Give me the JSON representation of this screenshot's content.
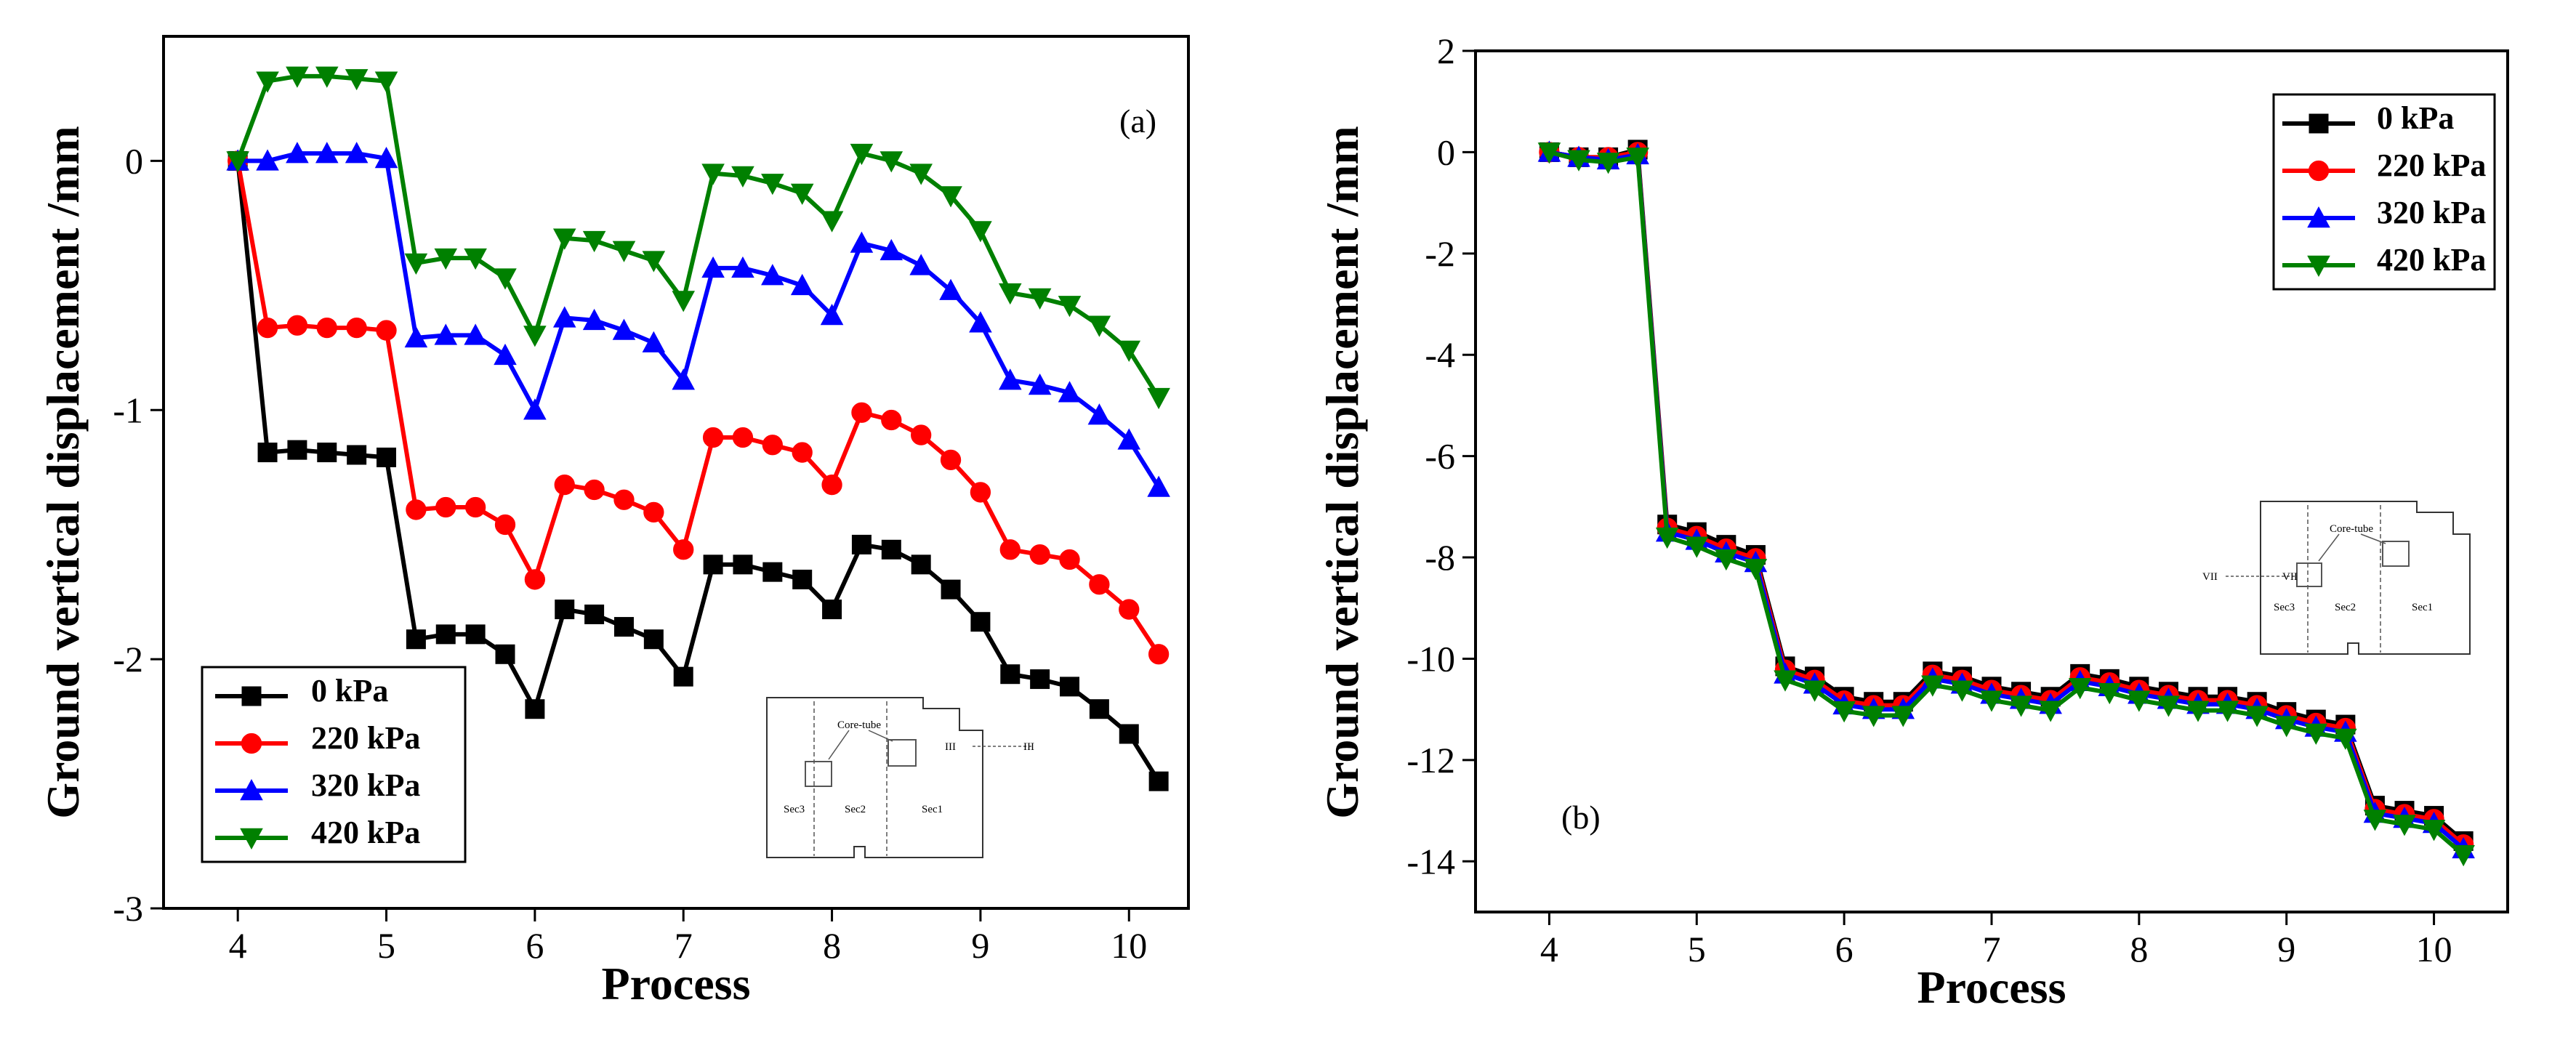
{
  "chart_data": [
    {
      "type": "line",
      "panel_label": "(a)",
      "xlabel": "Process",
      "ylabel": "Ground vertical displacement /mm",
      "xlim": [
        3.5,
        10.4
      ],
      "ylim": [
        -3,
        0.5
      ],
      "xticks": [
        4,
        5,
        6,
        7,
        8,
        9,
        10
      ],
      "yticks": [
        0,
        -1,
        -2,
        -3
      ],
      "ytick_labels": [
        "0",
        "-1",
        "-2",
        "-3"
      ],
      "legend_position": "bottom-left",
      "x": [
        4.0,
        4.2,
        4.4,
        4.6,
        4.8,
        5.0,
        5.2,
        5.4,
        5.6,
        5.8,
        6.0,
        6.2,
        6.4,
        6.6,
        6.8,
        7.0,
        7.2,
        7.4,
        7.6,
        7.8,
        8.0,
        8.2,
        8.4,
        8.6,
        8.8,
        9.0,
        9.2,
        9.4,
        9.6,
        9.8,
        10.0,
        10.2
      ],
      "series": [
        {
          "name": "0 kPa",
          "color": "#000000",
          "marker": "square",
          "values": [
            0,
            -1.17,
            -1.16,
            -1.17,
            -1.18,
            -1.19,
            -1.92,
            -1.9,
            -1.9,
            -1.98,
            -2.2,
            -1.8,
            -1.82,
            -1.87,
            -1.92,
            -2.07,
            -1.62,
            -1.62,
            -1.65,
            -1.68,
            -1.8,
            -1.54,
            -1.56,
            -1.62,
            -1.72,
            -1.85,
            -2.06,
            -2.08,
            -2.11,
            -2.2,
            -2.3,
            -2.49
          ]
        },
        {
          "name": "220 kPa",
          "color": "#ff0000",
          "marker": "circle",
          "values": [
            0,
            -0.67,
            -0.66,
            -0.67,
            -0.67,
            -0.68,
            -1.4,
            -1.39,
            -1.39,
            -1.46,
            -1.68,
            -1.3,
            -1.32,
            -1.36,
            -1.41,
            -1.56,
            -1.11,
            -1.11,
            -1.14,
            -1.17,
            -1.3,
            -1.01,
            -1.04,
            -1.1,
            -1.2,
            -1.33,
            -1.56,
            -1.58,
            -1.6,
            -1.7,
            -1.8,
            -1.98
          ]
        },
        {
          "name": "320 kPa",
          "color": "#0000ff",
          "marker": "triangle-up",
          "values": [
            0,
            0.0,
            0.03,
            0.03,
            0.03,
            0.01,
            -0.71,
            -0.7,
            -0.7,
            -0.78,
            -1.0,
            -0.63,
            -0.64,
            -0.68,
            -0.73,
            -0.88,
            -0.43,
            -0.43,
            -0.46,
            -0.5,
            -0.62,
            -0.33,
            -0.36,
            -0.42,
            -0.52,
            -0.65,
            -0.88,
            -0.9,
            -0.93,
            -1.02,
            -1.12,
            -1.31
          ]
        },
        {
          "name": "420 kPa",
          "color": "#008000",
          "marker": "triangle-down",
          "values": [
            0,
            0.32,
            0.34,
            0.34,
            0.33,
            0.32,
            -0.41,
            -0.39,
            -0.39,
            -0.47,
            -0.7,
            -0.31,
            -0.32,
            -0.36,
            -0.4,
            -0.56,
            -0.05,
            -0.06,
            -0.09,
            -0.13,
            -0.24,
            0.03,
            0.0,
            -0.05,
            -0.14,
            -0.28,
            -0.53,
            -0.55,
            -0.58,
            -0.66,
            -0.76,
            -0.95
          ]
        }
      ],
      "inset": {
        "labels": [
          "Core-tube",
          "III",
          "III",
          "Sec3",
          "Sec2",
          "Sec1"
        ]
      }
    },
    {
      "type": "line",
      "panel_label": "(b)",
      "xlabel": "Process",
      "ylabel": "Ground vertical displacement /mm",
      "xlim": [
        3.5,
        10.5
      ],
      "ylim": [
        -15,
        2
      ],
      "xticks": [
        4,
        5,
        6,
        7,
        8,
        9,
        10
      ],
      "yticks": [
        2,
        0,
        -2,
        -4,
        -6,
        -8,
        -10,
        -12,
        -14
      ],
      "ytick_labels": [
        "2",
        "0",
        "-2",
        "-4",
        "-6",
        "-8",
        "-10",
        "-12",
        "-14"
      ],
      "legend_position": "top-right",
      "x": [
        4.0,
        4.2,
        4.4,
        4.6,
        4.8,
        5.0,
        5.2,
        5.4,
        5.6,
        5.8,
        6.0,
        6.2,
        6.4,
        6.6,
        6.8,
        7.0,
        7.2,
        7.4,
        7.6,
        7.8,
        8.0,
        8.2,
        8.4,
        8.6,
        8.8,
        9.0,
        9.2,
        9.4,
        9.6,
        9.8,
        10.0,
        10.2
      ],
      "series": [
        {
          "name": "0 kPa",
          "color": "#000000",
          "marker": "square",
          "values": [
            0,
            -0.1,
            -0.1,
            0.05,
            -7.35,
            -7.5,
            -7.75,
            -7.95,
            -10.15,
            -10.35,
            -10.75,
            -10.85,
            -10.85,
            -10.25,
            -10.35,
            -10.55,
            -10.65,
            -10.75,
            -10.3,
            -10.4,
            -10.55,
            -10.65,
            -10.75,
            -10.75,
            -10.85,
            -11.05,
            -11.2,
            -11.3,
            -12.9,
            -13.0,
            -13.1,
            -13.6
          ]
        },
        {
          "name": "220 kPa",
          "color": "#ff0000",
          "marker": "circle",
          "values": [
            0,
            -0.1,
            -0.1,
            0.0,
            -7.42,
            -7.58,
            -7.83,
            -8.02,
            -10.22,
            -10.42,
            -10.83,
            -10.92,
            -10.92,
            -10.32,
            -10.42,
            -10.62,
            -10.72,
            -10.82,
            -10.37,
            -10.47,
            -10.62,
            -10.72,
            -10.82,
            -10.82,
            -10.92,
            -11.12,
            -11.27,
            -11.37,
            -12.97,
            -13.07,
            -13.17,
            -13.67
          ]
        },
        {
          "name": "320 kPa",
          "color": "#0000ff",
          "marker": "triangle-up",
          "values": [
            0,
            -0.1,
            -0.15,
            -0.05,
            -7.5,
            -7.66,
            -7.91,
            -8.1,
            -10.3,
            -10.5,
            -10.91,
            -11.0,
            -11.0,
            -10.4,
            -10.5,
            -10.7,
            -10.8,
            -10.9,
            -10.45,
            -10.55,
            -10.7,
            -10.8,
            -10.9,
            -10.9,
            -11.0,
            -11.2,
            -11.35,
            -11.45,
            -13.05,
            -13.15,
            -13.25,
            -13.75
          ]
        },
        {
          "name": "420 kPa",
          "color": "#008000",
          "marker": "triangle-down",
          "values": [
            0,
            -0.15,
            -0.2,
            -0.1,
            -7.6,
            -7.78,
            -8.03,
            -8.22,
            -10.42,
            -10.62,
            -11.03,
            -11.12,
            -11.12,
            -10.52,
            -10.62,
            -10.82,
            -10.92,
            -11.02,
            -10.57,
            -10.67,
            -10.82,
            -10.92,
            -11.02,
            -11.02,
            -11.12,
            -11.32,
            -11.47,
            -11.57,
            -13.17,
            -13.27,
            -13.37,
            -13.87
          ]
        }
      ],
      "inset": {
        "labels": [
          "Core-tube",
          "VII",
          "VII",
          "Sec3",
          "Sec2",
          "Sec1"
        ]
      }
    }
  ]
}
